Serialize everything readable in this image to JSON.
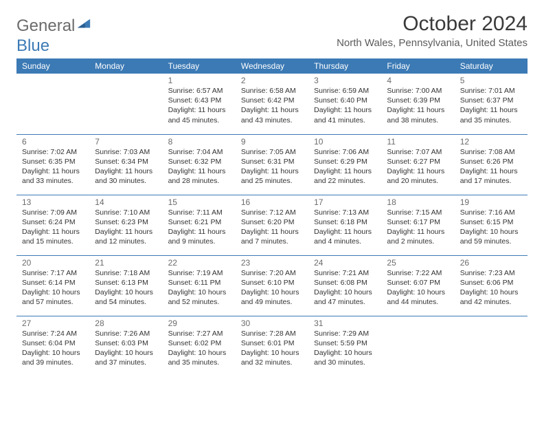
{
  "logo": {
    "text1": "General",
    "text2": "Blue"
  },
  "title": "October 2024",
  "location": "North Wales, Pennsylvania, United States",
  "header_bg": "#3c7ab5",
  "day_names": [
    "Sunday",
    "Monday",
    "Tuesday",
    "Wednesday",
    "Thursday",
    "Friday",
    "Saturday"
  ],
  "weeks": [
    [
      null,
      null,
      {
        "n": "1",
        "sr": "6:57 AM",
        "ss": "6:43 PM",
        "dl": "11 hours and 45 minutes."
      },
      {
        "n": "2",
        "sr": "6:58 AM",
        "ss": "6:42 PM",
        "dl": "11 hours and 43 minutes."
      },
      {
        "n": "3",
        "sr": "6:59 AM",
        "ss": "6:40 PM",
        "dl": "11 hours and 41 minutes."
      },
      {
        "n": "4",
        "sr": "7:00 AM",
        "ss": "6:39 PM",
        "dl": "11 hours and 38 minutes."
      },
      {
        "n": "5",
        "sr": "7:01 AM",
        "ss": "6:37 PM",
        "dl": "11 hours and 35 minutes."
      }
    ],
    [
      {
        "n": "6",
        "sr": "7:02 AM",
        "ss": "6:35 PM",
        "dl": "11 hours and 33 minutes."
      },
      {
        "n": "7",
        "sr": "7:03 AM",
        "ss": "6:34 PM",
        "dl": "11 hours and 30 minutes."
      },
      {
        "n": "8",
        "sr": "7:04 AM",
        "ss": "6:32 PM",
        "dl": "11 hours and 28 minutes."
      },
      {
        "n": "9",
        "sr": "7:05 AM",
        "ss": "6:31 PM",
        "dl": "11 hours and 25 minutes."
      },
      {
        "n": "10",
        "sr": "7:06 AM",
        "ss": "6:29 PM",
        "dl": "11 hours and 22 minutes."
      },
      {
        "n": "11",
        "sr": "7:07 AM",
        "ss": "6:27 PM",
        "dl": "11 hours and 20 minutes."
      },
      {
        "n": "12",
        "sr": "7:08 AM",
        "ss": "6:26 PM",
        "dl": "11 hours and 17 minutes."
      }
    ],
    [
      {
        "n": "13",
        "sr": "7:09 AM",
        "ss": "6:24 PM",
        "dl": "11 hours and 15 minutes."
      },
      {
        "n": "14",
        "sr": "7:10 AM",
        "ss": "6:23 PM",
        "dl": "11 hours and 12 minutes."
      },
      {
        "n": "15",
        "sr": "7:11 AM",
        "ss": "6:21 PM",
        "dl": "11 hours and 9 minutes."
      },
      {
        "n": "16",
        "sr": "7:12 AM",
        "ss": "6:20 PM",
        "dl": "11 hours and 7 minutes."
      },
      {
        "n": "17",
        "sr": "7:13 AM",
        "ss": "6:18 PM",
        "dl": "11 hours and 4 minutes."
      },
      {
        "n": "18",
        "sr": "7:15 AM",
        "ss": "6:17 PM",
        "dl": "11 hours and 2 minutes."
      },
      {
        "n": "19",
        "sr": "7:16 AM",
        "ss": "6:15 PM",
        "dl": "10 hours and 59 minutes."
      }
    ],
    [
      {
        "n": "20",
        "sr": "7:17 AM",
        "ss": "6:14 PM",
        "dl": "10 hours and 57 minutes."
      },
      {
        "n": "21",
        "sr": "7:18 AM",
        "ss": "6:13 PM",
        "dl": "10 hours and 54 minutes."
      },
      {
        "n": "22",
        "sr": "7:19 AM",
        "ss": "6:11 PM",
        "dl": "10 hours and 52 minutes."
      },
      {
        "n": "23",
        "sr": "7:20 AM",
        "ss": "6:10 PM",
        "dl": "10 hours and 49 minutes."
      },
      {
        "n": "24",
        "sr": "7:21 AM",
        "ss": "6:08 PM",
        "dl": "10 hours and 47 minutes."
      },
      {
        "n": "25",
        "sr": "7:22 AM",
        "ss": "6:07 PM",
        "dl": "10 hours and 44 minutes."
      },
      {
        "n": "26",
        "sr": "7:23 AM",
        "ss": "6:06 PM",
        "dl": "10 hours and 42 minutes."
      }
    ],
    [
      {
        "n": "27",
        "sr": "7:24 AM",
        "ss": "6:04 PM",
        "dl": "10 hours and 39 minutes."
      },
      {
        "n": "28",
        "sr": "7:26 AM",
        "ss": "6:03 PM",
        "dl": "10 hours and 37 minutes."
      },
      {
        "n": "29",
        "sr": "7:27 AM",
        "ss": "6:02 PM",
        "dl": "10 hours and 35 minutes."
      },
      {
        "n": "30",
        "sr": "7:28 AM",
        "ss": "6:01 PM",
        "dl": "10 hours and 32 minutes."
      },
      {
        "n": "31",
        "sr": "7:29 AM",
        "ss": "5:59 PM",
        "dl": "10 hours and 30 minutes."
      },
      null,
      null
    ]
  ],
  "labels": {
    "sunrise": "Sunrise:",
    "sunset": "Sunset:",
    "daylight": "Daylight:"
  }
}
